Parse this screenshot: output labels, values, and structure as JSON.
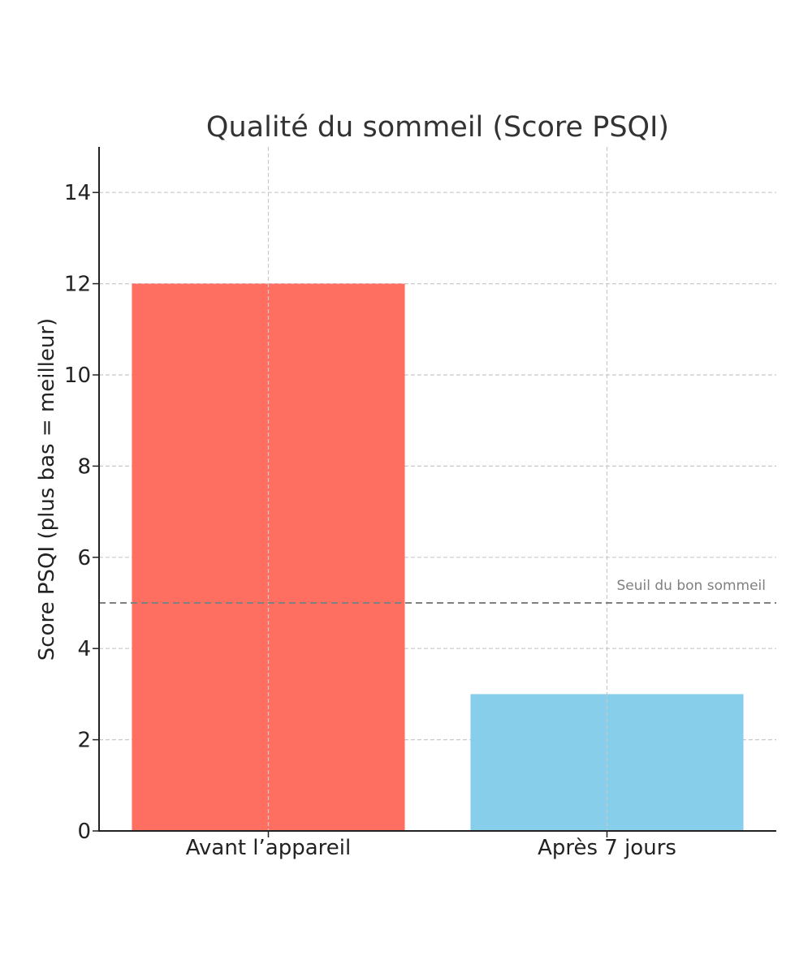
{
  "chart_data": {
    "type": "bar",
    "title": "Qualité du sommeil (Score PSQI)",
    "xlabel": "",
    "ylabel": "Score PSQI (plus bas = meilleur)",
    "categories": [
      "Avant l’appareil",
      "Après 7 jours"
    ],
    "values": [
      12,
      3
    ],
    "colors": [
      "#ff6f61",
      "#87ceeb"
    ],
    "ylim": [
      0,
      15
    ],
    "yticks": [
      0,
      2,
      4,
      6,
      8,
      10,
      12,
      14
    ],
    "ytick_labels": [
      "0",
      "2",
      "4",
      "6",
      "8",
      "10",
      "12",
      "14"
    ],
    "grid": true,
    "grid_color": "#c8c8c8",
    "threshold": {
      "value": 5,
      "label": "Seuil du bon sommeil",
      "color": "#808080"
    }
  }
}
